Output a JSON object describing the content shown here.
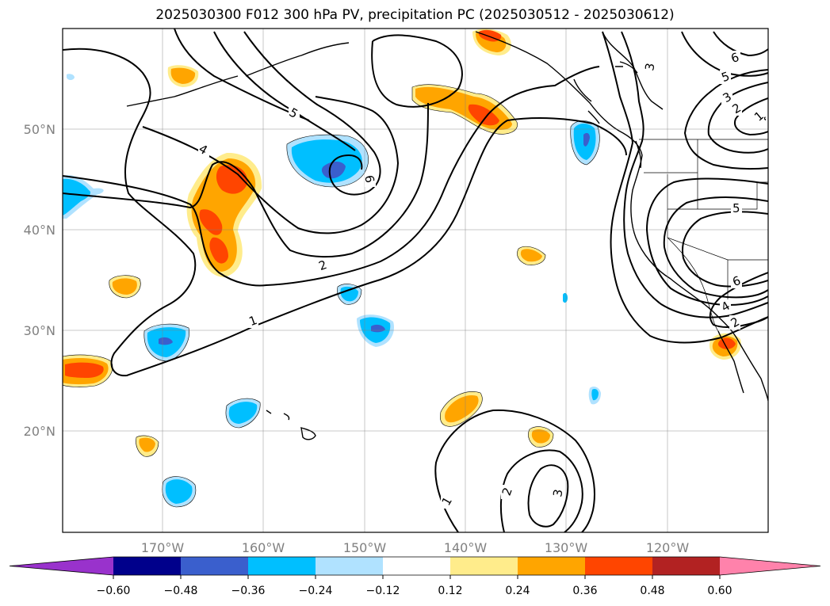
{
  "title": "2025030300 F012 300 hPa PV, precipitation PC (2025030512 - 2025030612)",
  "lat_labels": [
    "50°N",
    "40°N",
    "30°N",
    "20°N"
  ],
  "lon_labels": [
    "170°W",
    "160°W",
    "150°W",
    "140°W",
    "130°W",
    "120°W"
  ],
  "colorbar": {
    "tick_labels": [
      "−0.60",
      "−0.48",
      "−0.36",
      "−0.24",
      "−0.12",
      "0.12",
      "0.24",
      "0.36",
      "0.48",
      "0.60"
    ],
    "colors": [
      "#9932cc",
      "#00008b",
      "#3a5fcd",
      "#00bfff",
      "#b0e2ff",
      "#ffffff",
      "#ffec8b",
      "#ffa500",
      "#ff4500",
      "#b22222",
      "#ff82ab"
    ]
  },
  "pv_contour_labels": [
    "1",
    "2",
    "4",
    "5",
    "6",
    "1",
    "2",
    "3",
    "6",
    "5",
    "3",
    "2",
    "4",
    "5",
    "6",
    "4",
    "2",
    "1",
    "1",
    "2",
    "3"
  ]
}
